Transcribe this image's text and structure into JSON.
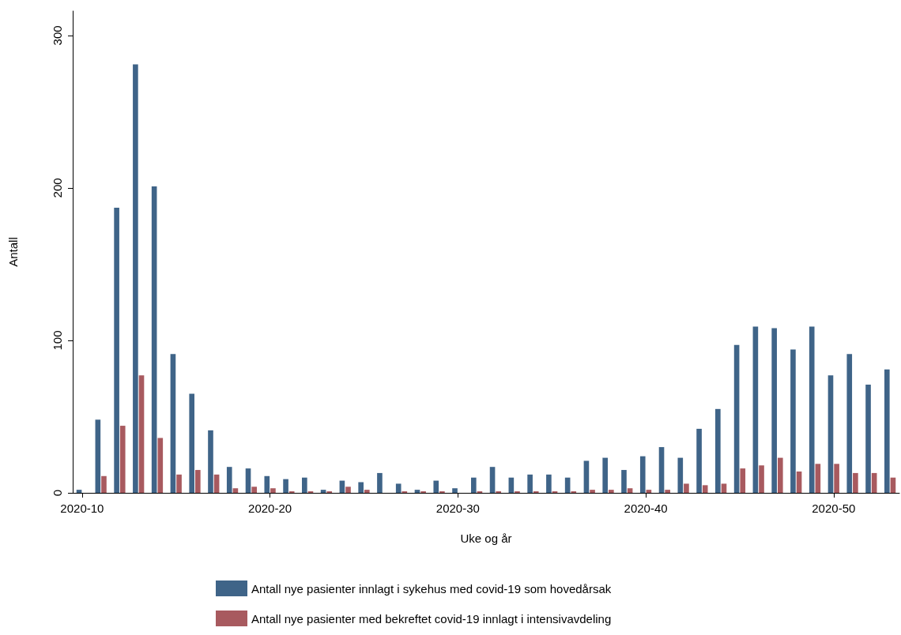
{
  "chart_data": {
    "type": "bar",
    "xlabel": "Uke og år",
    "ylabel": "Antall",
    "categories": [
      "2020-10",
      null,
      null,
      null,
      null,
      null,
      null,
      null,
      null,
      null,
      "2020-20",
      null,
      null,
      null,
      null,
      null,
      null,
      null,
      null,
      null,
      "2020-30",
      null,
      null,
      null,
      null,
      null,
      null,
      null,
      null,
      null,
      "2020-40",
      null,
      null,
      null,
      null,
      null,
      null,
      null,
      null,
      null,
      "2020-50",
      null,
      null,
      null
    ],
    "series": [
      {
        "name": "Antall nye pasienter innlagt i sykehus med covid-19 som hovedårsak",
        "color": "#3f6488",
        "values": [
          2,
          48,
          187,
          281,
          201,
          91,
          65,
          41,
          17,
          16,
          11,
          9,
          10,
          2,
          8,
          7,
          13,
          6,
          2,
          8,
          3,
          10,
          17,
          10,
          12,
          12,
          10,
          21,
          23,
          15,
          24,
          30,
          23,
          42,
          55,
          97,
          109,
          108,
          94,
          109,
          77,
          91,
          71,
          81
        ]
      },
      {
        "name": "Antall nye pasienter med bekreftet covid-19 innlagt i intensivavdeling",
        "color": "#a85a5f",
        "values": [
          0,
          11,
          44,
          77,
          36,
          12,
          15,
          12,
          3,
          4,
          3,
          1,
          1,
          1,
          4,
          2,
          0,
          1,
          1,
          1,
          0,
          1,
          1,
          1,
          1,
          1,
          1,
          2,
          2,
          3,
          2,
          2,
          6,
          5,
          6,
          16,
          18,
          23,
          14,
          19,
          19,
          13,
          13,
          10
        ]
      }
    ],
    "ylim": [
      0,
      316
    ],
    "yticks": [
      0,
      100,
      200,
      300
    ],
    "grid": false,
    "legend": "bottom"
  }
}
